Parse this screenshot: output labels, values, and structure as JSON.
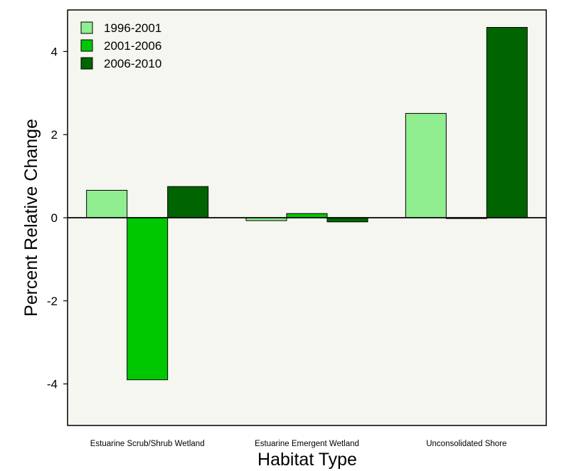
{
  "chart_data": {
    "type": "bar",
    "title": "",
    "xlabel": "Habitat Type",
    "ylabel": "Percent Relative Change",
    "ylim": [
      -5,
      5
    ],
    "yticks": [
      -4,
      -2,
      0,
      2,
      4
    ],
    "ytick_labels": [
      "-4",
      "-2",
      "0",
      "2",
      "4"
    ],
    "categories": [
      "Estuarine Scrub/Shrub Wetland",
      "Estuarine Emergent Wetland",
      "Unconsolidated Shore"
    ],
    "series": [
      {
        "name": "1996-2001",
        "color": "#90ee90",
        "values": [
          0.66,
          -0.07,
          2.51
        ]
      },
      {
        "name": "2001-2006",
        "color": "#00c800",
        "values": [
          -3.9,
          0.1,
          -0.02
        ]
      },
      {
        "name": "2006-2010",
        "color": "#006400",
        "values": [
          0.75,
          -0.1,
          4.58
        ]
      }
    ],
    "legend_position": "top-left",
    "grid": false,
    "plot_background": "#f5f6f0",
    "zero_line": true
  }
}
